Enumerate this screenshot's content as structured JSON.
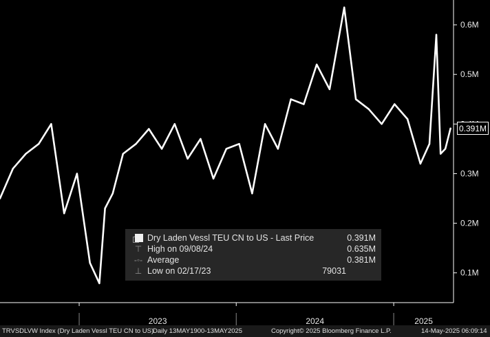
{
  "chart_data": {
    "type": "line",
    "series": [
      {
        "name": "Dry Laden Vessl TEU CN to US - Last Price",
        "x": [
          "2022-07-01",
          "2022-07-31",
          "2022-08-30",
          "2022-09-29",
          "2022-10-28",
          "2022-11-27",
          "2022-12-27",
          "2023-01-26",
          "2023-02-17",
          "2023-03-02",
          "2023-03-20",
          "2023-04-13",
          "2023-05-13",
          "2023-06-12",
          "2023-07-12",
          "2023-08-11",
          "2023-09-10",
          "2023-10-10",
          "2023-11-09",
          "2023-12-09",
          "2024-01-08",
          "2024-02-07",
          "2024-03-08",
          "2024-04-07",
          "2024-05-07",
          "2024-06-06",
          "2024-07-06",
          "2024-08-05",
          "2024-09-08",
          "2024-10-05",
          "2024-11-04",
          "2024-12-04",
          "2025-01-03",
          "2025-02-02",
          "2025-03-04",
          "2025-03-25",
          "2025-04-10",
          "2025-04-20",
          "2025-05-01",
          "2025-05-13"
        ],
        "values": [
          0.25,
          0.31,
          0.34,
          0.36,
          0.4,
          0.22,
          0.3,
          0.12,
          0.079,
          0.23,
          0.26,
          0.34,
          0.36,
          0.39,
          0.35,
          0.4,
          0.33,
          0.37,
          0.29,
          0.35,
          0.36,
          0.26,
          0.4,
          0.35,
          0.45,
          0.44,
          0.52,
          0.47,
          0.635,
          0.45,
          0.43,
          0.4,
          0.44,
          0.41,
          0.32,
          0.36,
          0.58,
          0.34,
          0.35,
          0.391
        ]
      }
    ],
    "ylim": [
      0.04,
      0.65
    ],
    "y_ticks": [
      {
        "value": 0.1,
        "label": "0.1M"
      },
      {
        "value": 0.2,
        "label": "0.2M"
      },
      {
        "value": 0.3,
        "label": "0.3M"
      },
      {
        "value": 0.4,
        "label": "0.4M"
      },
      {
        "value": 0.5,
        "label": "0.5M"
      },
      {
        "value": 0.6,
        "label": "0.6M"
      }
    ],
    "x_range": [
      "2022-07-01",
      "2025-05-20"
    ],
    "x_period_labels": [
      {
        "label": "2023",
        "from": "2023-01-01",
        "to": "2024-01-01"
      },
      {
        "label": "2024",
        "from": "2024-01-01",
        "to": "2025-01-01"
      },
      {
        "label": "2025",
        "from": "2025-01-01",
        "to": "2025-05-20"
      }
    ],
    "last_value": 0.391,
    "last_value_label": "0.391M",
    "grid": false,
    "legend_placement": "bottom-center",
    "colors": {
      "background": "#000000",
      "line": "#ffffff",
      "axis": "#ffffff"
    }
  },
  "legend": {
    "series_label": "Dry Laden Vessl TEU CN to US - Last Price",
    "series_value": "0.391M",
    "high_label": "High on 09/08/24",
    "high_value": "0.635M",
    "avg_label": "Average",
    "avg_value": "0.381M",
    "low_label": "Low on 02/17/23",
    "low_value": "79031"
  },
  "footer": {
    "index": "TRVSDLVW Index (Dry Laden Vessl TEU CN to US)",
    "range": "Daily 13MAY1900-13MAY2025",
    "copyright": "Copyright© 2025 Bloomberg Finance L.P.",
    "timestamp": "14-May-2025 06:09:14"
  }
}
